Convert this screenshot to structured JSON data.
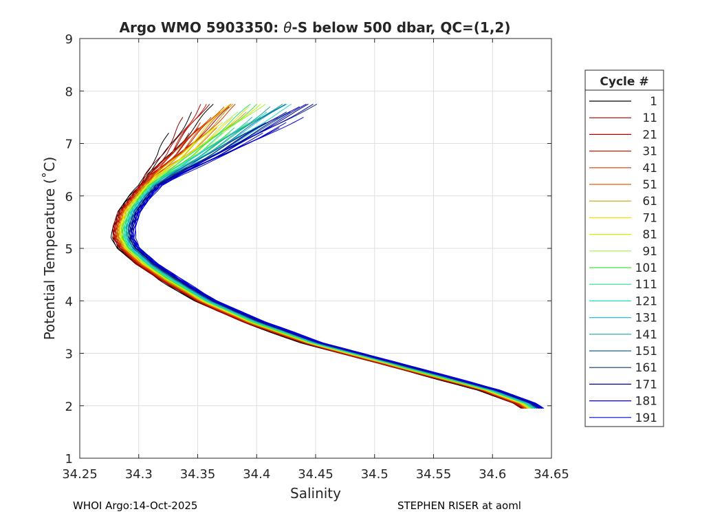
{
  "chart_data": {
    "type": "line",
    "title": "Argo WMO 5903350: θ-S below 500 dbar,  QC=(1,2)",
    "title_parts": {
      "prefix": "Argo WMO 5903350: ",
      "symbol": "θ",
      "suffix": "-S below 500 dbar,  QC=(1,2)"
    },
    "xlabel": "Salinity",
    "ylabel": "Potential Temperature (˚C)",
    "xlim": [
      34.25,
      34.65
    ],
    "ylim": [
      1,
      9
    ],
    "xticks": [
      "34.25",
      "34.3",
      "34.35",
      "34.4",
      "34.45",
      "34.5",
      "34.55",
      "34.6",
      "34.65"
    ],
    "yticks": [
      "1",
      "2",
      "3",
      "4",
      "5",
      "6",
      "7",
      "8",
      "9"
    ],
    "grid": true,
    "legend": {
      "title": "Cycle #",
      "placement": "outside-right",
      "entries": [
        "1",
        "11",
        "21",
        "31",
        "41",
        "51",
        "61",
        "71",
        "81",
        "91",
        "101",
        "111",
        "121",
        "131",
        "141",
        "151",
        "161",
        "171",
        "181",
        "191"
      ],
      "colors": [
        "#000000",
        "#8b0000",
        "#b00000",
        "#cc1a00",
        "#d43a00",
        "#e06000",
        "#c8a000",
        "#f0e000",
        "#d0f000",
        "#a0f050",
        "#40e040",
        "#20e080",
        "#20e0c0",
        "#20c0e0",
        "#20a0a0",
        "#1060a0",
        "#103080",
        "#000080",
        "#0000b0",
        "#0000e0"
      ]
    },
    "series_profile": {
      "description": "Mean theta-S curve; cycles spread around it",
      "salinity": [
        34.38,
        34.36,
        34.34,
        34.32,
        34.305,
        34.295,
        34.29,
        34.29,
        34.295,
        34.31,
        34.33,
        34.36,
        34.4,
        34.45,
        34.5,
        34.55,
        34.6,
        34.63,
        34.64
      ],
      "theta": [
        7.8,
        7.3,
        6.8,
        6.4,
        6.0,
        5.7,
        5.4,
        5.2,
        5.0,
        4.7,
        4.4,
        4.0,
        3.6,
        3.2,
        2.9,
        2.6,
        2.3,
        2.05,
        1.9
      ]
    }
  },
  "footer": {
    "left": "WHOI Argo:14-Oct-2025",
    "right": "STEPHEN RISER at aoml"
  }
}
